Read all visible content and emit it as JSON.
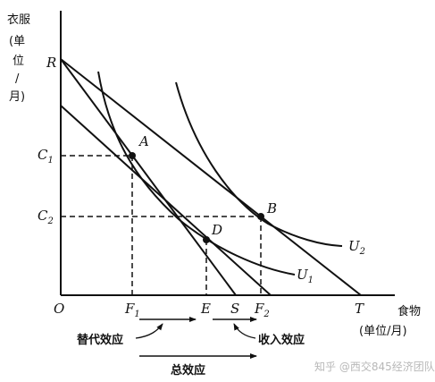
{
  "y_axis_label": [
    "衣服",
    "(单",
    "位",
    "/",
    "月)"
  ],
  "x_axis_label": [
    "食物",
    "(单位/月)"
  ],
  "origin": "O",
  "points": {
    "R": "R",
    "A": "A",
    "B": "B",
    "D": "D",
    "C1": "C",
    "C1_sub": "1",
    "C2": "C",
    "C2_sub": "2",
    "F1": "F",
    "F1_sub": "1",
    "F2": "F",
    "F2_sub": "2",
    "E": "E",
    "S": "S",
    "T": "T"
  },
  "curves": {
    "U1": "U",
    "U1_sub": "1",
    "U2": "U",
    "U2_sub": "2"
  },
  "effects": {
    "substitution": "替代效应",
    "income": "收入效应",
    "total": "总效应"
  },
  "watermark": "知乎 @西交845经济团队"
}
